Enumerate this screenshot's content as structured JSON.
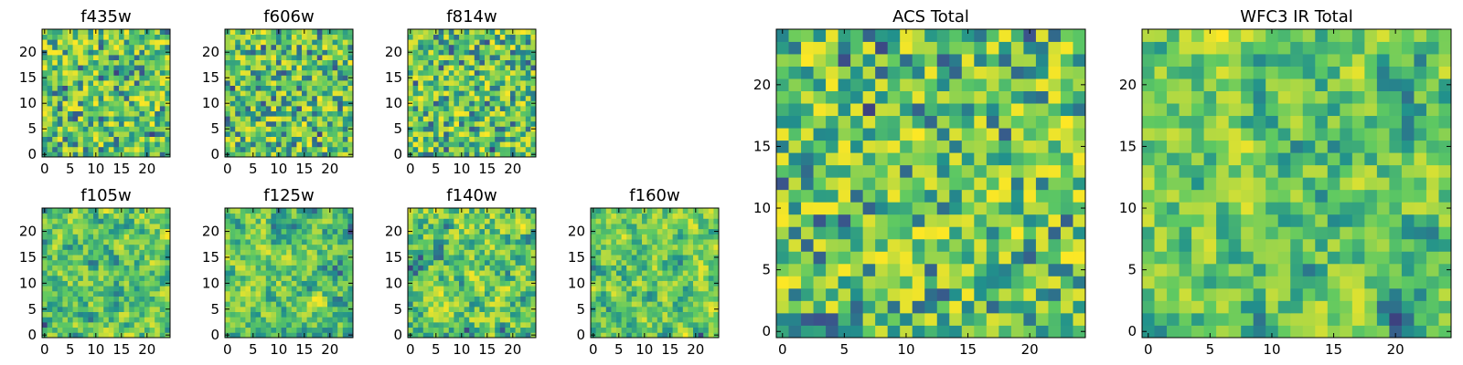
{
  "chart_data": [
    {
      "type": "heatmap",
      "title": "f435w",
      "x_range": [
        0,
        24
      ],
      "y_range": [
        0,
        24
      ],
      "grid": [
        25,
        25
      ],
      "xticks": [
        "0",
        "5",
        "10",
        "15",
        "20"
      ],
      "yticks": [
        "0",
        "5",
        "10",
        "15",
        "20"
      ],
      "colormap": "viridis",
      "seed": 11,
      "texture": "noise"
    },
    {
      "type": "heatmap",
      "title": "f606w",
      "x_range": [
        0,
        24
      ],
      "y_range": [
        0,
        24
      ],
      "grid": [
        25,
        25
      ],
      "xticks": [
        "0",
        "5",
        "10",
        "15",
        "20"
      ],
      "yticks": [
        "0",
        "5",
        "10",
        "15",
        "20"
      ],
      "colormap": "viridis",
      "seed": 23,
      "texture": "noise"
    },
    {
      "type": "heatmap",
      "title": "f814w",
      "x_range": [
        0,
        24
      ],
      "y_range": [
        0,
        24
      ],
      "grid": [
        25,
        25
      ],
      "xticks": [
        "0",
        "5",
        "10",
        "15",
        "20"
      ],
      "yticks": [
        "0",
        "5",
        "10",
        "15",
        "20"
      ],
      "colormap": "viridis",
      "seed": 37,
      "texture": "noise"
    },
    {
      "type": "heatmap",
      "title": "f105w",
      "x_range": [
        0,
        24
      ],
      "y_range": [
        0,
        24
      ],
      "grid": [
        25,
        25
      ],
      "xticks": [
        "0",
        "5",
        "10",
        "15",
        "20"
      ],
      "yticks": [
        "0",
        "5",
        "10",
        "15",
        "20"
      ],
      "colormap": "viridis",
      "seed": 41,
      "texture": "smooth"
    },
    {
      "type": "heatmap",
      "title": "f125w",
      "x_range": [
        0,
        24
      ],
      "y_range": [
        0,
        24
      ],
      "grid": [
        25,
        25
      ],
      "xticks": [
        "0",
        "5",
        "10",
        "15",
        "20"
      ],
      "yticks": [
        "0",
        "5",
        "10",
        "15",
        "20"
      ],
      "colormap": "viridis",
      "seed": 53,
      "texture": "smooth"
    },
    {
      "type": "heatmap",
      "title": "f140w",
      "x_range": [
        0,
        24
      ],
      "y_range": [
        0,
        24
      ],
      "grid": [
        25,
        25
      ],
      "xticks": [
        "0",
        "5",
        "10",
        "15",
        "20"
      ],
      "yticks": [
        "0",
        "5",
        "10",
        "15",
        "20"
      ],
      "colormap": "viridis",
      "seed": 67,
      "texture": "smooth"
    },
    {
      "type": "heatmap",
      "title": "f160w",
      "x_range": [
        0,
        24
      ],
      "y_range": [
        0,
        24
      ],
      "grid": [
        25,
        25
      ],
      "xticks": [
        "0",
        "5",
        "10",
        "15",
        "20"
      ],
      "yticks": [
        "0",
        "5",
        "10",
        "15",
        "20"
      ],
      "colormap": "viridis",
      "seed": 79,
      "texture": "smooth"
    },
    {
      "type": "heatmap",
      "title": "ACS Total",
      "x_range": [
        0,
        24
      ],
      "y_range": [
        0,
        24
      ],
      "grid": [
        25,
        25
      ],
      "xticks": [
        "0",
        "5",
        "10",
        "15",
        "20"
      ],
      "yticks": [
        "0",
        "5",
        "10",
        "15",
        "20"
      ],
      "colormap": "viridis",
      "seed": 97,
      "texture": "noise"
    },
    {
      "type": "heatmap",
      "title": "WFC3 IR Total",
      "x_range": [
        0,
        24
      ],
      "y_range": [
        0,
        24
      ],
      "grid": [
        25,
        25
      ],
      "xticks": [
        "0",
        "5",
        "10",
        "15",
        "20"
      ],
      "yticks": [
        "0",
        "5",
        "10",
        "15",
        "20"
      ],
      "colormap": "viridis",
      "seed": 131,
      "texture": "smooth"
    }
  ],
  "colors": {
    "viridis_stops": [
      "#440154",
      "#3b528b",
      "#21918c",
      "#5ec962",
      "#fde725"
    ]
  }
}
